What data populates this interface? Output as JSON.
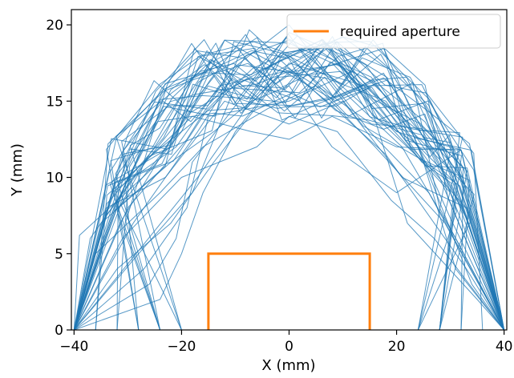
{
  "chart_data": {
    "type": "line",
    "title": "",
    "xlabel": "X (mm)",
    "ylabel": "Y (mm)",
    "xlim": [
      -40.5,
      40.5
    ],
    "ylim": [
      0,
      21
    ],
    "xticks": [
      -40,
      -20,
      0,
      20,
      40
    ],
    "xtick_labels": [
      "−40",
      "−20",
      "0",
      "20",
      "40"
    ],
    "yticks": [
      0,
      5,
      10,
      15,
      20
    ],
    "ytick_labels": [
      "0",
      "5",
      "10",
      "15",
      "20"
    ],
    "grid": false,
    "legend": {
      "position": "top-right",
      "entries": [
        "required aperture"
      ]
    },
    "series": [
      {
        "name": "required aperture",
        "color": "#ff7f0e",
        "points": [
          [
            -15,
            0
          ],
          [
            -15,
            5
          ],
          [
            15,
            5
          ],
          [
            15,
            0
          ]
        ]
      }
    ],
    "paths": {
      "color": "#1f77b4",
      "count": 50,
      "start": [
        -40,
        0
      ],
      "end": [
        40,
        0
      ],
      "description_free_region_note": "",
      "samples": [
        [
          [
            -40,
            0
          ],
          [
            -39,
            6.2
          ],
          [
            -26,
            10.4
          ],
          [
            -20,
            13
          ],
          [
            -12,
            19
          ],
          [
            0,
            18.8
          ],
          [
            8,
            17.5
          ],
          [
            20,
            13
          ],
          [
            32,
            11.8
          ],
          [
            40,
            0
          ]
        ],
        [
          [
            -40,
            0
          ],
          [
            -30,
            8
          ],
          [
            -19,
            12.5
          ],
          [
            -11,
            17
          ],
          [
            0,
            20
          ],
          [
            9,
            16
          ],
          [
            21,
            12
          ],
          [
            31,
            6
          ],
          [
            40,
            0
          ]
        ],
        [
          [
            -40,
            0
          ],
          [
            -25,
            6.5
          ],
          [
            -17,
            10
          ],
          [
            -9,
            14
          ],
          [
            0,
            19.5
          ],
          [
            10,
            18
          ],
          [
            22,
            14
          ],
          [
            30,
            10.5
          ],
          [
            40,
            0
          ]
        ],
        [
          [
            -40,
            0
          ],
          [
            -33,
            9
          ],
          [
            -21,
            12
          ],
          [
            -13,
            16
          ],
          [
            0,
            17
          ],
          [
            7,
            15
          ],
          [
            18,
            11.5
          ],
          [
            33,
            4
          ],
          [
            40,
            0
          ]
        ],
        [
          [
            -40,
            0
          ],
          [
            -28,
            5
          ],
          [
            -18,
            9
          ],
          [
            -10,
            16
          ],
          [
            0,
            18
          ],
          [
            11,
            14
          ],
          [
            23,
            16.2
          ],
          [
            28,
            8
          ],
          [
            40,
            0
          ]
        ],
        [
          [
            -40,
            0
          ],
          [
            -35,
            7
          ],
          [
            -22,
            11
          ],
          [
            -14,
            13
          ],
          [
            -7,
            15
          ],
          [
            0,
            16
          ],
          [
            8,
            12
          ],
          [
            20,
            9
          ],
          [
            32,
            11.8
          ],
          [
            40,
            0
          ]
        ],
        [
          [
            -40,
            0
          ],
          [
            -27,
            4
          ],
          [
            -19,
            8
          ],
          [
            -15,
            14
          ],
          [
            0,
            15
          ],
          [
            12,
            17
          ],
          [
            24,
            12
          ],
          [
            34,
            3
          ],
          [
            40,
            0
          ]
        ],
        [
          [
            -40,
            0
          ],
          [
            -31,
            6
          ],
          [
            -20,
            10
          ],
          [
            -6,
            12
          ],
          [
            0,
            14
          ],
          [
            9,
            13
          ],
          [
            19,
            8.5
          ],
          [
            27,
            6
          ],
          [
            40,
            0
          ]
        ],
        [
          [
            -40,
            0
          ],
          [
            -36,
            5
          ],
          [
            -24,
            9
          ],
          [
            -16,
            12
          ],
          [
            -4,
            14.5
          ],
          [
            5,
            16
          ],
          [
            16,
            12
          ],
          [
            29,
            7
          ],
          [
            40,
            0
          ]
        ],
        [
          [
            -40,
            0
          ],
          [
            -29,
            7
          ],
          [
            -17,
            13
          ],
          [
            -8,
            18
          ],
          [
            0,
            19
          ],
          [
            13,
            15
          ],
          [
            25,
            11
          ],
          [
            31,
            4
          ],
          [
            40,
            0
          ]
        ],
        [
          [
            -40,
            0
          ],
          [
            -26,
            3
          ],
          [
            -21,
            6
          ],
          [
            -18,
            11
          ],
          [
            -5,
            17
          ],
          [
            6,
            19
          ],
          [
            17,
            14
          ],
          [
            30,
            9
          ],
          [
            40,
            0
          ]
        ],
        [
          [
            -40,
            0
          ],
          [
            -34,
            8
          ],
          [
            -23,
            10
          ],
          [
            -12,
            15
          ],
          [
            0,
            13.5
          ],
          [
            10,
            15
          ],
          [
            21,
            10
          ],
          [
            33,
            8
          ],
          [
            40,
            0
          ]
        ],
        [
          [
            -40,
            0
          ],
          [
            -24,
            2
          ],
          [
            -20,
            5
          ],
          [
            -16,
            9
          ],
          [
            -10,
            13
          ],
          [
            0,
            17.5
          ],
          [
            14,
            16
          ],
          [
            22,
            7
          ],
          [
            35,
            2
          ],
          [
            40,
            0
          ]
        ],
        [
          [
            -40,
            0
          ],
          [
            -30,
            10
          ],
          [
            -18,
            14
          ],
          [
            -7,
            13
          ],
          [
            0,
            12.5
          ],
          [
            8,
            14
          ],
          [
            20,
            12
          ],
          [
            32,
            11.8
          ],
          [
            40,
            0
          ]
        ],
        [
          [
            -40,
            0
          ],
          [
            -32,
            4
          ],
          [
            -22,
            7
          ],
          [
            -14,
            11
          ],
          [
            -3,
            16
          ],
          [
            4,
            18
          ],
          [
            15,
            13
          ],
          [
            26,
            9
          ],
          [
            40,
            0
          ]
        ],
        [
          [
            -40,
            0
          ],
          [
            -37,
            6
          ],
          [
            -25,
            12
          ],
          [
            -12,
            19
          ],
          [
            -2,
            17
          ],
          [
            7,
            16.5
          ],
          [
            18,
            15
          ],
          [
            28,
            10
          ],
          [
            40,
            0
          ]
        ]
      ]
    }
  }
}
